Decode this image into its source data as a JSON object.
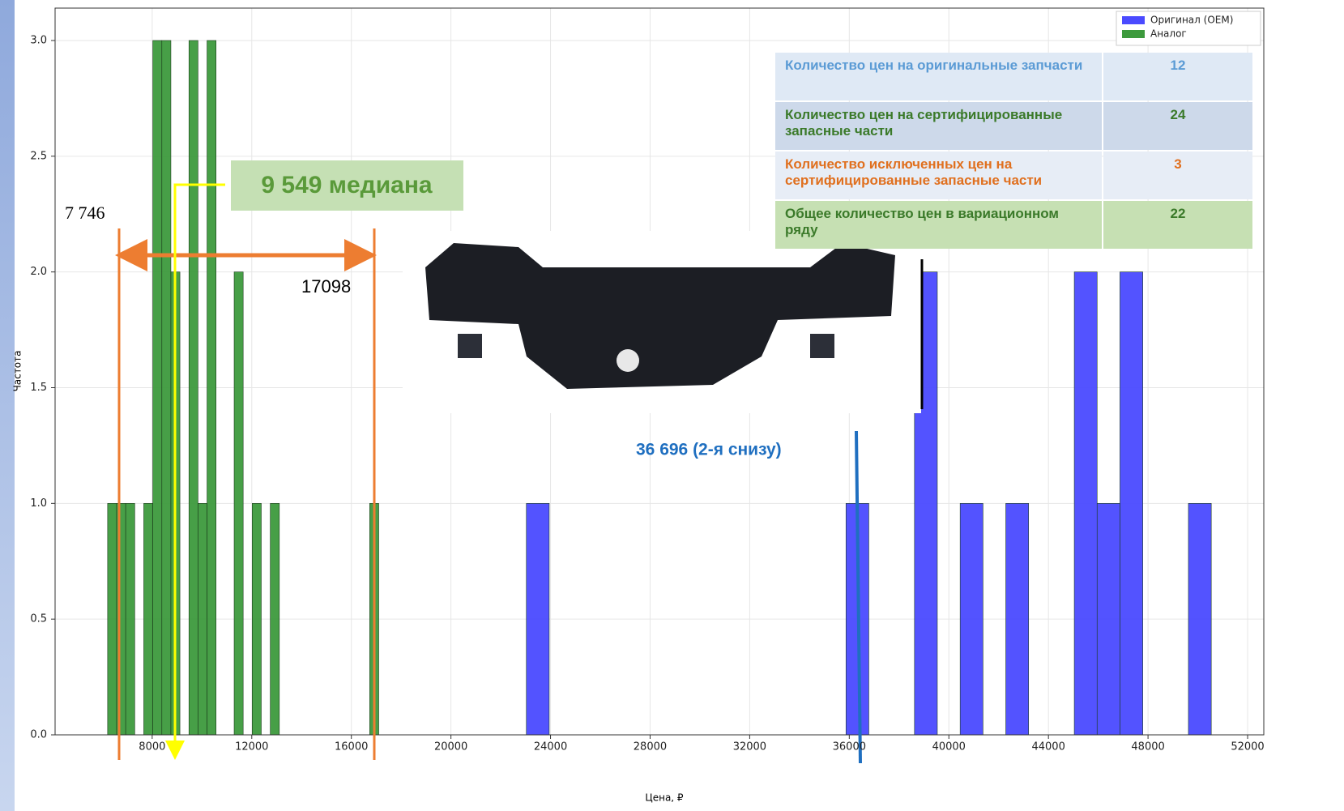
{
  "chart_data": {
    "type": "histogram",
    "x_label": "Цена, ₽",
    "y_label": "Частота",
    "xlim": [
      4100,
      52650
    ],
    "ylim": [
      0,
      3.14
    ],
    "xticks": [
      8000,
      12000,
      16000,
      20000,
      24000,
      28000,
      32000,
      36000,
      40000,
      44000,
      48000,
      52000
    ],
    "yticks": [
      {
        "value": 0,
        "label": "0.0"
      },
      {
        "value": 0.5,
        "label": "0.5"
      },
      {
        "value": 1,
        "label": "1.0"
      },
      {
        "value": 1.5,
        "label": "1.5"
      },
      {
        "value": 2,
        "label": "2.0"
      },
      {
        "value": 2.5,
        "label": "2.5"
      },
      {
        "value": 3,
        "label": "3.0"
      }
    ],
    "grid": true,
    "legend": "upper right",
    "series": [
      {
        "name": "Оригинал (OEM)",
        "color": "#4a4aff",
        "bins": [
          23030,
          23947,
          24864,
          25781,
          26698,
          27615,
          28532,
          29449,
          30366,
          31283,
          32200,
          33117,
          34034,
          34951,
          35868,
          36785,
          37702,
          38619,
          39536,
          40453,
          41370,
          42287,
          43204,
          44121,
          45038,
          45955,
          46872,
          47789,
          48706,
          49623,
          50540
        ],
        "values": [
          1,
          0,
          0,
          0,
          0,
          0,
          0,
          0,
          0,
          0,
          0,
          0,
          0,
          0,
          1,
          0,
          0,
          2,
          0,
          1,
          0,
          1,
          0,
          0,
          2,
          1,
          2,
          0,
          0,
          1
        ]
      },
      {
        "name": "Аналог",
        "color": "#3d9a3d",
        "bins": [
          6210,
          6573,
          6936,
          7299,
          7662,
          8025,
          8388,
          8751,
          9114,
          9477,
          9840,
          10203,
          10566,
          10929,
          11292,
          11655,
          12018,
          12381,
          12744,
          13107,
          13470,
          13833,
          14196,
          14559,
          14922,
          15285,
          15648,
          16011,
          16374,
          16737,
          17100
        ],
        "values": [
          1,
          1,
          1,
          0,
          1,
          3,
          3,
          2,
          0,
          3,
          1,
          3,
          0,
          0,
          2,
          0,
          1,
          0,
          1,
          0,
          0,
          0,
          0,
          0,
          0,
          0,
          0,
          0,
          0,
          1
        ]
      }
    ],
    "annotations": [
      "9 549 медиана",
      "7 746",
      "17098",
      "36 696 (2-я снизу)"
    ]
  },
  "table": {
    "rows": [
      [
        "Количество цен на оригинальные запчасти",
        12
      ],
      [
        "Количество цен на сертифицированные запасные части",
        24
      ],
      [
        "Количество исключенных цен на сертифицированные запасные части",
        3
      ],
      [
        "Общее количество цен в вариационном ряду",
        22
      ]
    ]
  }
}
